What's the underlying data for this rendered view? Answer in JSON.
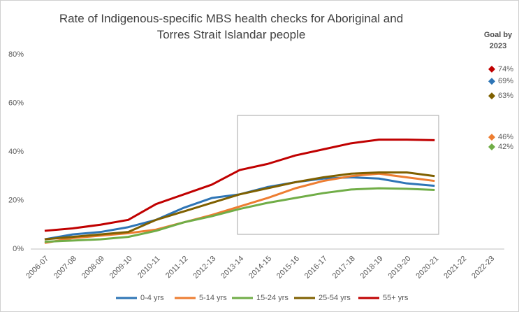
{
  "chart_data": {
    "type": "line",
    "title": "Rate of Indigenous-specific MBS health checks for Aboriginal and Torres Strait Islandar people",
    "goal_title": "Goal by 2023",
    "categories": [
      "2006-07",
      "2007-08",
      "2008-09",
      "2009-10",
      "2010-11",
      "2011-12",
      "2012-13",
      "2013-14",
      "2014-15",
      "2015-16",
      "2016-17",
      "2017-18",
      "2018-19",
      "2019-20",
      "2020-21",
      "2021-22",
      "2022-23"
    ],
    "ylim": [
      0,
      80
    ],
    "yticks": [
      {
        "value": 0,
        "label": "0%"
      },
      {
        "value": 20,
        "label": "20%"
      },
      {
        "value": 40,
        "label": "40%"
      },
      {
        "value": 60,
        "label": "60%"
      },
      {
        "value": 80,
        "label": "80%"
      }
    ],
    "grid": false,
    "legend": "bottom",
    "series": [
      {
        "name": "0-4 yrs",
        "color": "#2e75b6",
        "values": [
          4,
          6,
          7,
          9,
          12,
          17,
          21,
          22.5,
          25.5,
          27.5,
          29,
          29.5,
          29,
          27,
          26,
          null,
          null
        ],
        "goal": 69,
        "goal_label": "69%"
      },
      {
        "name": "5-14 yrs",
        "color": "#ed7d31",
        "values": [
          2.5,
          4.5,
          5.5,
          6.5,
          8,
          11,
          14,
          17.5,
          21,
          25,
          28,
          30,
          31,
          29.5,
          28,
          null,
          null
        ],
        "goal": 46,
        "goal_label": "46%"
      },
      {
        "name": "15-24 yrs",
        "color": "#70ad47",
        "values": [
          3,
          3.5,
          4,
          5,
          7.5,
          11,
          13.5,
          16.5,
          19,
          21,
          23,
          24.5,
          25,
          24.8,
          24.3,
          null,
          null
        ],
        "goal": 42,
        "goal_label": "42%"
      },
      {
        "name": "25-54 yrs",
        "color": "#7f6000",
        "values": [
          4,
          5,
          6,
          7,
          12,
          15.5,
          19,
          22.5,
          25,
          27.5,
          29.5,
          31,
          31.5,
          31.5,
          30,
          null,
          null
        ],
        "goal": 63,
        "goal_label": "63%"
      },
      {
        "name": "55+ yrs",
        "color": "#c00000",
        "values": [
          7.5,
          8.5,
          10,
          12,
          18.5,
          22.5,
          26.5,
          32.5,
          35,
          38.5,
          41,
          43.5,
          45,
          45,
          44.8,
          null,
          null
        ],
        "goal": 74,
        "goal_label": "74%"
      }
    ]
  }
}
